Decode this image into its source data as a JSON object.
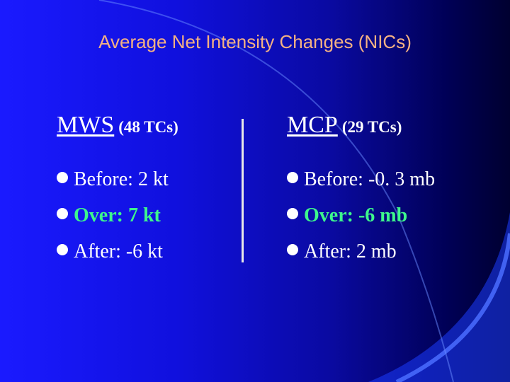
{
  "slide": {
    "title": "Average Net Intensity Changes (NICs)",
    "colors": {
      "background": "#1010dd",
      "title": "#f4b183",
      "text": "#ffffff",
      "highlight": "#3ef68c",
      "curve": "#4a6cff"
    }
  },
  "mws": {
    "heading": "MWS",
    "subheading": "(48 TCs)",
    "items": [
      {
        "label": "Before:",
        "value": "2 kt"
      },
      {
        "label": "Over:",
        "value": "7 kt"
      },
      {
        "label": "After:",
        "value": "-6 kt"
      }
    ]
  },
  "mcp": {
    "heading": "MCP",
    "subheading": "(29 TCs)",
    "items": [
      {
        "label": "Before:",
        "value": "-0. 3 mb"
      },
      {
        "label": "Over:",
        "value": "-6 mb"
      },
      {
        "label": "After:",
        "value": "2 mb"
      }
    ]
  }
}
